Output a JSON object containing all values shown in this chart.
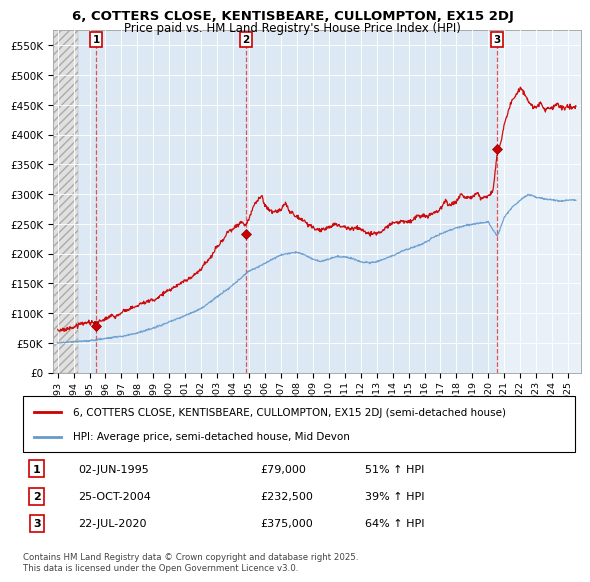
{
  "title": "6, COTTERS CLOSE, KENTISBEARE, CULLOMPTON, EX15 2DJ",
  "subtitle": "Price paid vs. HM Land Registry's House Price Index (HPI)",
  "ylim": [
    0,
    575000
  ],
  "yticks": [
    0,
    50000,
    100000,
    150000,
    200000,
    250000,
    300000,
    350000,
    400000,
    450000,
    500000,
    550000
  ],
  "ytick_labels": [
    "£0",
    "£50K",
    "£100K",
    "£150K",
    "£200K",
    "£250K",
    "£300K",
    "£350K",
    "£400K",
    "£450K",
    "£500K",
    "£550K"
  ],
  "xlim_start": 1992.7,
  "xlim_end": 2025.8,
  "xtick_years": [
    1993,
    1994,
    1995,
    1996,
    1997,
    1998,
    1999,
    2000,
    2001,
    2002,
    2003,
    2004,
    2005,
    2006,
    2007,
    2008,
    2009,
    2010,
    2011,
    2012,
    2013,
    2014,
    2015,
    2016,
    2017,
    2018,
    2019,
    2020,
    2021,
    2022,
    2023,
    2024,
    2025
  ],
  "sale_dates": [
    1995.42,
    2004.81,
    2020.55
  ],
  "sale_prices": [
    79000,
    232500,
    375000
  ],
  "sale_labels": [
    "1",
    "2",
    "3"
  ],
  "sale_info": [
    {
      "label": "1",
      "date": "02-JUN-1995",
      "price": "£79,000",
      "hpi": "51% ↑ HPI"
    },
    {
      "label": "2",
      "date": "25-OCT-2004",
      "price": "£232,500",
      "hpi": "39% ↑ HPI"
    },
    {
      "label": "3",
      "date": "22-JUL-2020",
      "price": "£375,000",
      "hpi": "64% ↑ HPI"
    }
  ],
  "legend_line1": "6, COTTERS CLOSE, KENTISBEARE, CULLOMPTON, EX15 2DJ (semi-detached house)",
  "legend_line2": "HPI: Average price, semi-detached house, Mid Devon",
  "footer": "Contains HM Land Registry data © Crown copyright and database right 2025.\nThis data is licensed under the Open Government Licence v3.0.",
  "bg_hatch_color": "#cccccc",
  "bg_main_color": "#dce9f5",
  "bg_after_sale3": "#e8f0f8",
  "red_line_color": "#cc0000",
  "blue_line_color": "#6699cc",
  "hatch_end": 1994.3
}
